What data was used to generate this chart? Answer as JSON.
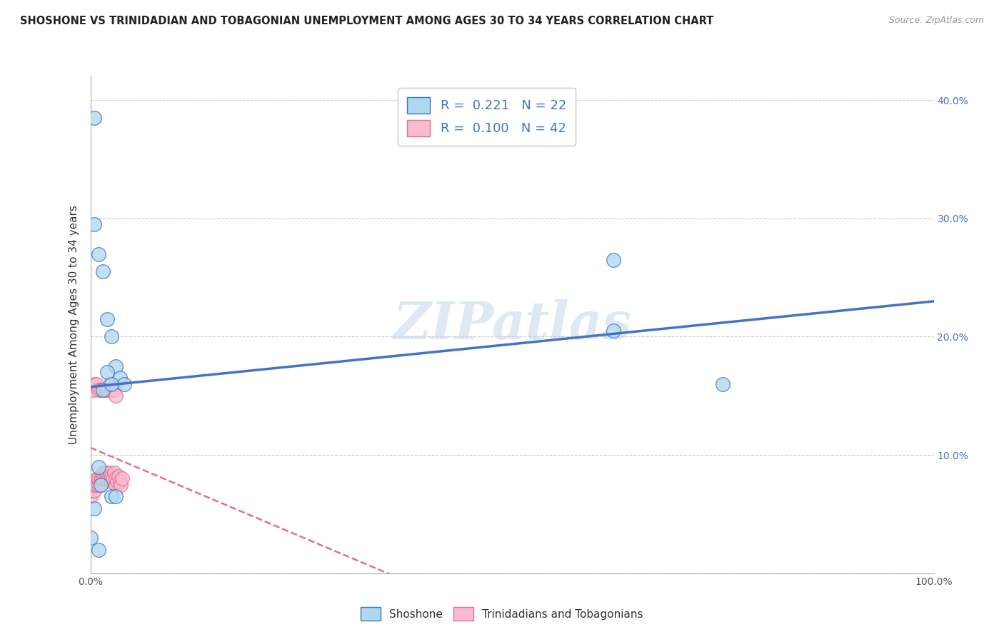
{
  "title": "SHOSHONE VS TRINIDADIAN AND TOBAGONIAN UNEMPLOYMENT AMONG AGES 30 TO 34 YEARS CORRELATION CHART",
  "source": "Source: ZipAtlas.com",
  "ylabel": "Unemployment Among Ages 30 to 34 years",
  "legend_label_1": "Shoshone",
  "legend_label_2": "Trinidadians and Tobagonians",
  "R1": "0.221",
  "N1": "22",
  "R2": "0.100",
  "N2": "42",
  "color_shoshone": "#add8f0",
  "color_trinidadian": "#f9bccf",
  "color_line_shoshone": "#4472c4",
  "color_line_trinidadian": "#e07090",
  "xlim": [
    0,
    1.0
  ],
  "ylim": [
    0,
    0.42
  ],
  "xticks": [
    0.0,
    0.1,
    0.2,
    0.3,
    0.4,
    0.5,
    0.6,
    0.7,
    0.8,
    0.9,
    1.0
  ],
  "xticklabels": [
    "0.0%",
    "",
    "",
    "",
    "",
    "",
    "",
    "",
    "",
    "",
    "100.0%"
  ],
  "yticks": [
    0.0,
    0.1,
    0.2,
    0.3,
    0.4
  ],
  "ytick_labels_left": [
    "",
    "",
    "",
    "",
    ""
  ],
  "ytick_labels_right": [
    "",
    "10.0%",
    "20.0%",
    "30.0%",
    "40.0%"
  ],
  "shoshone_x": [
    0.005,
    0.005,
    0.01,
    0.015,
    0.02,
    0.025,
    0.03,
    0.035,
    0.04,
    0.01,
    0.012,
    0.025,
    0.03,
    0.0,
    0.62,
    0.62,
    0.75,
    0.02,
    0.015,
    0.025,
    0.005,
    0.01
  ],
  "shoshone_y": [
    0.385,
    0.295,
    0.27,
    0.255,
    0.215,
    0.2,
    0.175,
    0.165,
    0.16,
    0.09,
    0.075,
    0.065,
    0.065,
    0.03,
    0.265,
    0.205,
    0.16,
    0.17,
    0.155,
    0.16,
    0.055,
    0.02
  ],
  "trinidadian_x": [
    0.0,
    0.003,
    0.005,
    0.005,
    0.007,
    0.008,
    0.01,
    0.01,
    0.012,
    0.012,
    0.013,
    0.015,
    0.015,
    0.017,
    0.018,
    0.02,
    0.02,
    0.022,
    0.023,
    0.025,
    0.025,
    0.027,
    0.028,
    0.03,
    0.03,
    0.032,
    0.033,
    0.035,
    0.036,
    0.038,
    0.003,
    0.005,
    0.007,
    0.01,
    0.012,
    0.015,
    0.018,
    0.02,
    0.023,
    0.025,
    0.028,
    0.03
  ],
  "trinidadian_y": [
    0.065,
    0.07,
    0.07,
    0.075,
    0.075,
    0.08,
    0.075,
    0.08,
    0.075,
    0.08,
    0.08,
    0.08,
    0.085,
    0.08,
    0.085,
    0.08,
    0.085,
    0.082,
    0.085,
    0.078,
    0.082,
    0.08,
    0.085,
    0.075,
    0.08,
    0.078,
    0.082,
    0.078,
    0.075,
    0.08,
    0.155,
    0.16,
    0.16,
    0.155,
    0.155,
    0.155,
    0.155,
    0.155,
    0.16,
    0.155,
    0.155,
    0.15
  ],
  "watermark_text": "ZIPatlas",
  "background_color": "#ffffff",
  "grid_color": "#cccccc"
}
